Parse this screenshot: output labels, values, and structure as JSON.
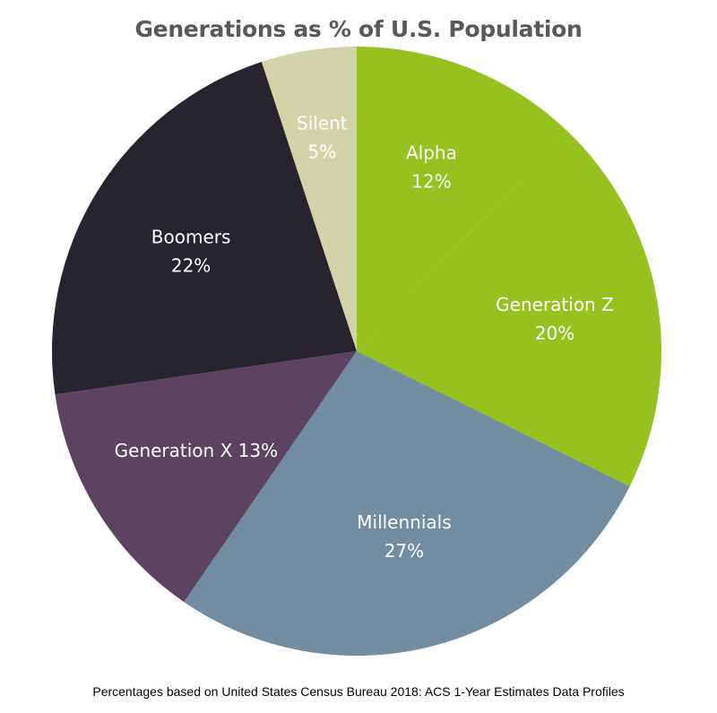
{
  "chart_data": {
    "type": "pie",
    "title": "Generations as % of U.S. Population",
    "note": "Percentages based on United States Census Bureau 2018: ACS 1-Year Estimates Data Profiles",
    "slices": [
      {
        "name": "Alpha",
        "value_label": "12%",
        "value": 12,
        "color": "#97c11f"
      },
      {
        "name": "Generation Z",
        "value_label": "20%",
        "value": 20,
        "color": "#97c11f"
      },
      {
        "name": "Millennials",
        "value_label": "27%",
        "value": 27,
        "color": "#728d9f"
      },
      {
        "name": "Generation X",
        "value_label": "13%",
        "value": 13,
        "color": "#5c4460"
      },
      {
        "name": "Boomers",
        "value_label": "22%",
        "value": 22,
        "color": "#27232f"
      },
      {
        "name": "Silent",
        "value_label": "5%",
        "value": 5,
        "color": "#d1d3a9"
      }
    ]
  }
}
